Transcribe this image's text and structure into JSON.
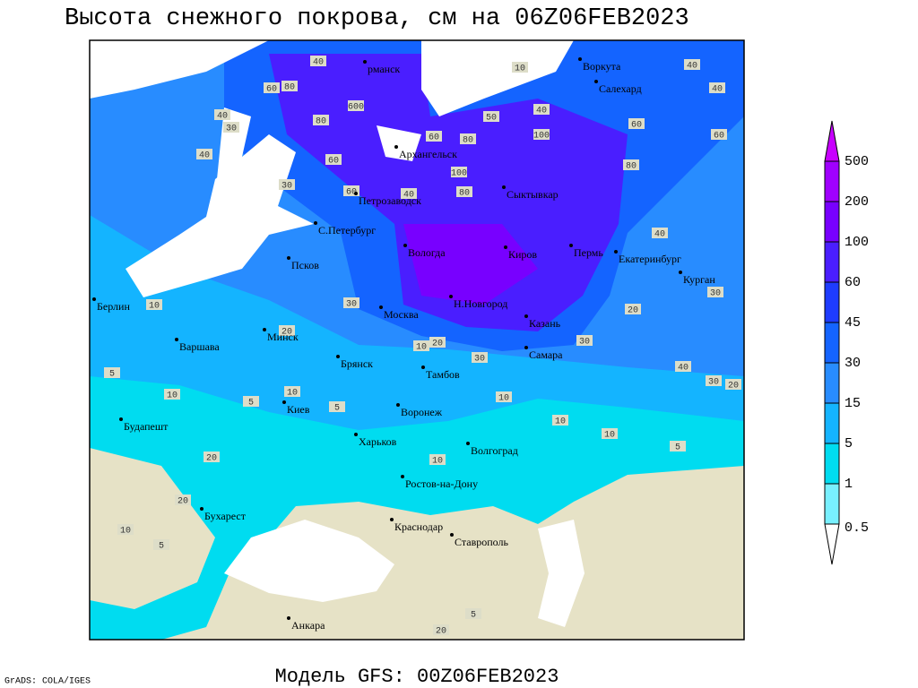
{
  "title": "Высота снежного покрова, см на 06Z06FEB2023",
  "footer": "Модель GFS: 00Z06FEB2023",
  "credit": "GrADS: COLA/IGES",
  "cities": [
    "рманск",
    "Воркута",
    "Салехард",
    "Архангельск",
    "Сыктывкар",
    "Петрозаводск",
    "С.Петербург",
    "Вологда",
    "Киров",
    "Пермь",
    "Екатеринбург",
    "Курган",
    "Псков",
    "Берлин",
    "Москва",
    "Н.Новгород",
    "Казань",
    "Варшава",
    "Минск",
    "Брянск",
    "Тамбов",
    "Самара",
    "Киев",
    "Воронеж",
    "Будапешт",
    "Харьков",
    "Волгоград",
    "Ростов-на-Дону",
    "Бухарест",
    "Краснодар",
    "Ставрополь",
    "Анкара"
  ],
  "contour_labels": [
    40,
    60,
    80,
    600,
    40,
    30,
    80,
    40,
    60,
    30,
    60,
    40,
    80,
    100,
    60,
    80,
    100,
    50,
    40,
    80,
    60,
    40,
    40,
    60,
    40,
    30,
    20,
    30,
    40,
    30,
    20,
    10,
    10,
    5,
    10,
    30,
    10,
    20,
    20,
    10,
    10,
    10,
    5,
    5,
    10,
    20,
    20,
    10,
    5,
    5,
    20,
    5,
    30,
    10
  ],
  "colorbar": {
    "levels": [
      500,
      200,
      100,
      60,
      45,
      30,
      15,
      5,
      1,
      0.5
    ],
    "colors": [
      "#c800ff",
      "#a000ff",
      "#7800ff",
      "#4a1eff",
      "#1e3cff",
      "#1464ff",
      "#288cff",
      "#14b4ff",
      "#00dcf0",
      "#78f0ff",
      "#ffffff"
    ]
  }
}
